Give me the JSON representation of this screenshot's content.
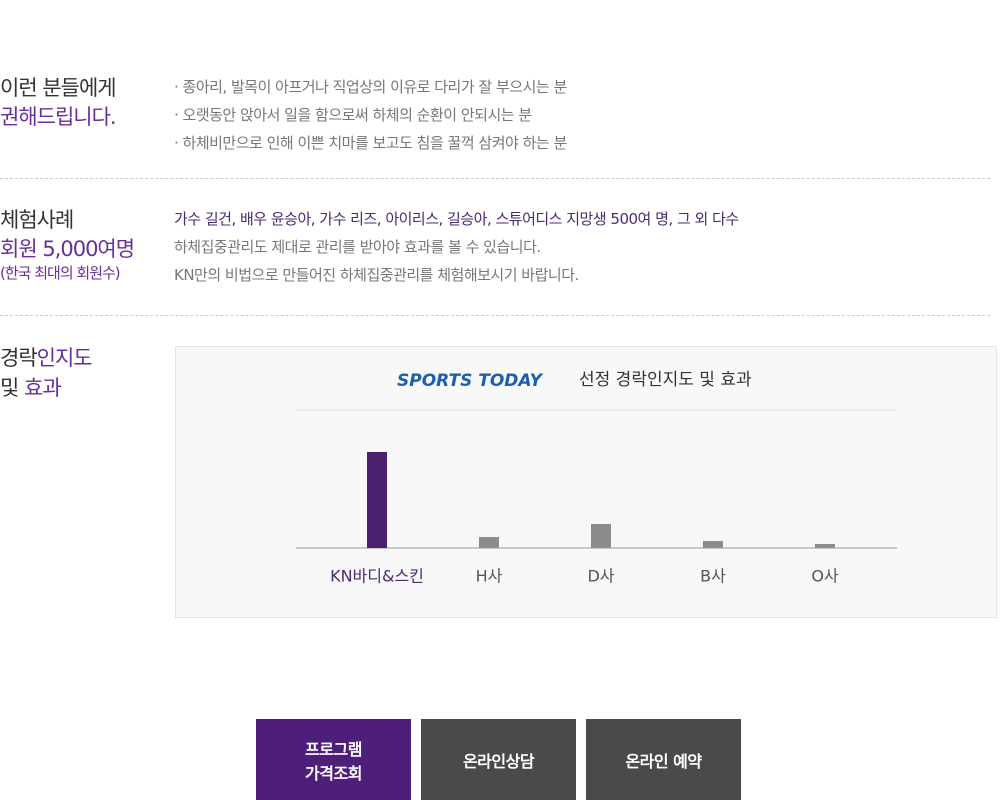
{
  "intro": {
    "heading": [
      "이런 분들에게",
      "권해드립니다."
    ],
    "items": [
      "· 종아리, 발목이 아프거나 직업상의 이유로 다리가 잘 부으시는 분",
      "· 오랫동안 앉아서 일을 함으로써 하체의 순환이 안되시는 분",
      "· 하체비만으로 인해 이쁜 치마를 보고도 침을 꿀꺽 삼켜야 하는 분"
    ]
  },
  "cases": {
    "heading": [
      "체험사례",
      "회원 5,000여명",
      "(한국 최대의 회원수)"
    ],
    "items": [
      "가수 길건, 배우 윤승아, 가수 리즈, 아이리스, 길승아, 스튜어디스 지망생 500여 명, 그 외 다수",
      "하체집중관리도 제대로 관리를 받아야 효과를 볼 수 있습니다.",
      "KN만의 비법으로 만들어진 하체집중관리를 체험해보시기 바랍니다."
    ]
  },
  "awareness": {
    "heading": [
      "경락",
      "인지도",
      "및",
      "효과"
    ]
  },
  "chart_data": {
    "type": "bar",
    "logo": "SPORTS TODAY",
    "title": "선정 경락인지도 및 효과",
    "categories": [
      "KN바디&스킨",
      "H사",
      "D사",
      "B사",
      "O사"
    ],
    "values": [
      96,
      11,
      24,
      7,
      4
    ],
    "colors": [
      "#4b1f6f",
      "#8c8c8c",
      "#8c8c8c",
      "#8c8c8c",
      "#8c8c8c"
    ]
  },
  "buttons": [
    "프로그램\n가격조회",
    "온라인상담",
    "온라인 예약"
  ]
}
